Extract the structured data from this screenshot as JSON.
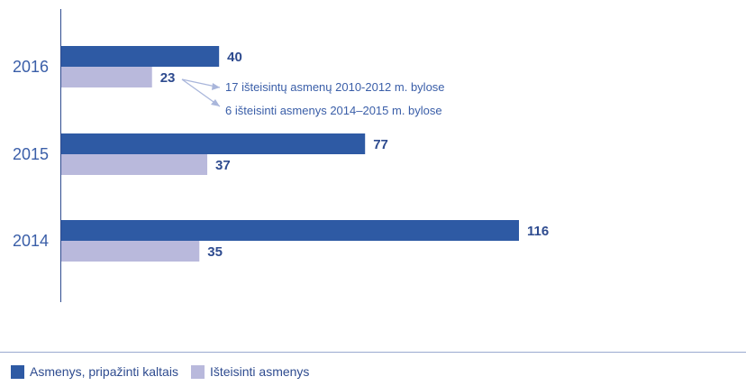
{
  "chart_data": {
    "type": "bar",
    "orientation": "horizontal",
    "categories": [
      "2016",
      "2015",
      "2014"
    ],
    "series": [
      {
        "name": "Asmenys, pripažinti kaltais",
        "values": [
          40,
          77,
          116
        ],
        "color": "#2e5aa4"
      },
      {
        "name": "Išteisinti asmenys",
        "values": [
          23,
          37,
          35
        ],
        "color": "#b9b9dc"
      }
    ],
    "annotations": [
      "17 išteisintų asmenų 2010-2012 m. bylose",
      "6 išteisinti asmenys 2014–2015 m. bylose"
    ],
    "xlim": [
      0,
      116
    ],
    "grid": false,
    "legend_position": "bottom-left"
  }
}
